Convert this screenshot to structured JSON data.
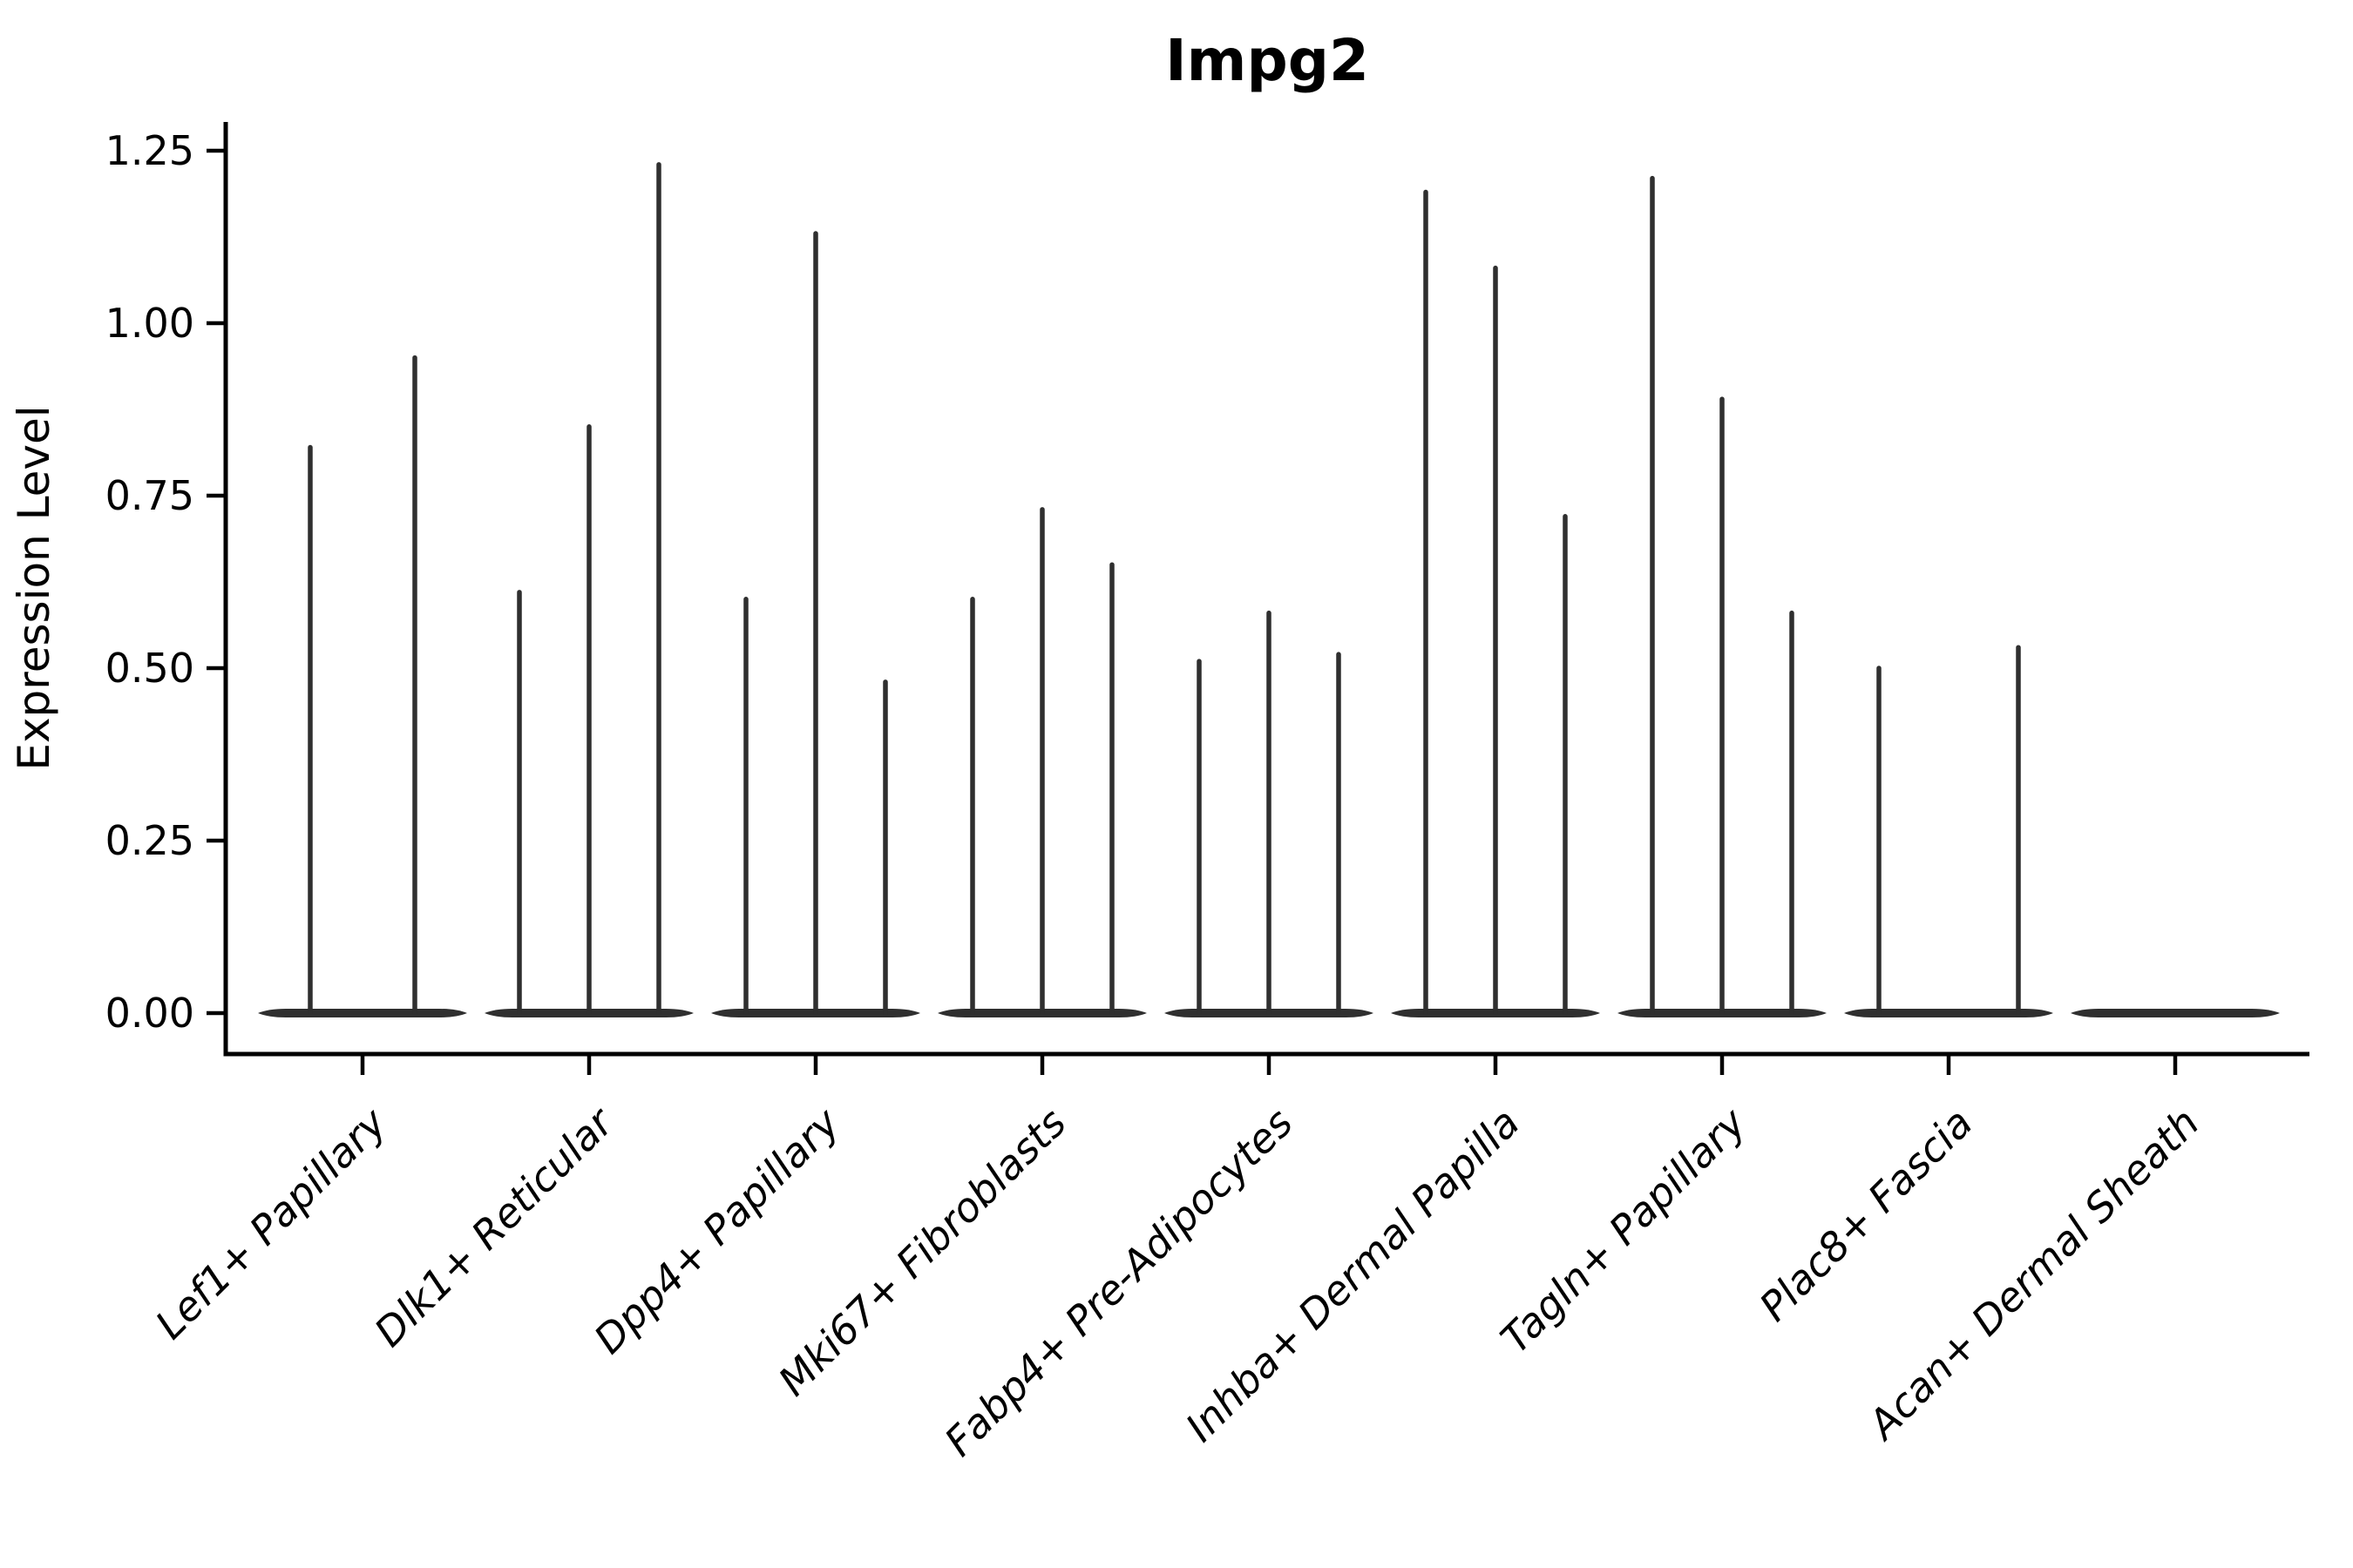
{
  "chart_data": {
    "type": "violin",
    "title": "Impg2",
    "ylabel": "Expression Level",
    "xlabel": "",
    "grid": false,
    "legend": "none",
    "ylim": [
      -0.06,
      1.29
    ],
    "yticks": [
      0,
      0.25,
      0.5,
      0.75,
      1.0,
      1.25
    ],
    "ytick_labels": [
      "0.00",
      "0.25",
      "0.50",
      "0.75",
      "1.00",
      "1.25"
    ],
    "categories": [
      "Lef1+ Papillary",
      "Dlk1+ Reticular",
      "Dpp4+ Papillary",
      "Mki67+ Fibroblasts",
      "Fabp4+ Pre-Adipocytes",
      "Inhba+ Dermal Papilla",
      "Tagln+ Papillary",
      "Plac8+ Fascia",
      "Acan+ Dermal Sheath"
    ],
    "groups": [
      {
        "label": "Lef1+ Papillary",
        "spike_values": [
          0.82,
          0.95
        ]
      },
      {
        "label": "Dlk1+ Reticular",
        "spike_values": [
          0.61,
          0.85,
          1.23
        ]
      },
      {
        "label": "Dpp4+ Papillary",
        "spike_values": [
          0.6,
          1.13,
          0.48
        ]
      },
      {
        "label": "Mki67+ Fibroblasts",
        "spike_values": [
          0.6,
          0.73,
          0.65
        ]
      },
      {
        "label": "Fabp4+ Pre-Adipocytes",
        "spike_values": [
          0.51,
          0.58,
          0.52
        ]
      },
      {
        "label": "Inhba+ Dermal Papilla",
        "spike_values": [
          1.19,
          1.08,
          0.72
        ]
      },
      {
        "label": "Tagln+ Papillary",
        "spike_values": [
          1.21,
          0.89,
          0.58
        ]
      },
      {
        "label": "Plac8+ Fascia",
        "spike_values": [
          0.5,
          null,
          0.53
        ]
      },
      {
        "label": "Acan+ Dermal Sheath",
        "spike_values": [
          null
        ]
      }
    ],
    "violin_color": "#2f2f2f",
    "axis_color": "#000000"
  }
}
